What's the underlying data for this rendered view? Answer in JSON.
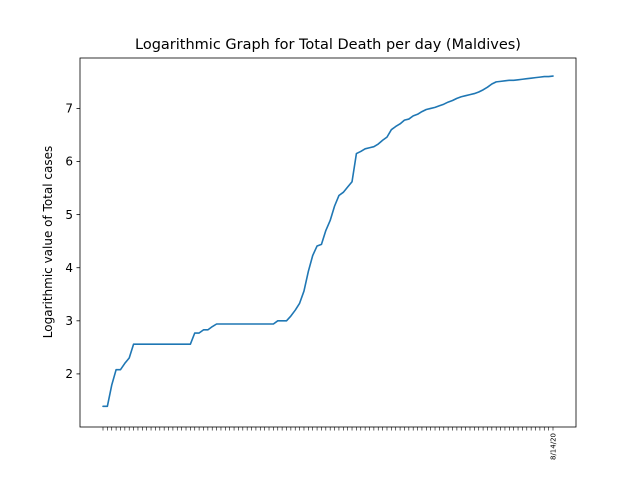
{
  "chart_data": {
    "type": "line",
    "title": "Logarithmic Graph for Total Death per day (Maldives)",
    "xlabel": "",
    "ylabel": "Logarithmic value of Total cases",
    "ylim": [
      1.0,
      7.95
    ],
    "yticks": [
      2,
      3,
      4,
      5,
      6,
      7
    ],
    "grid": false,
    "legend": "none",
    "line_color": "#1f77b4",
    "x_tick_labels": "dates (one label per day, overlapping and unreadable in the original)",
    "last_x_label": "8/14/20",
    "series": [
      {
        "values": [
          1.39,
          1.39,
          1.79,
          2.08,
          2.08,
          2.2,
          2.3,
          2.56,
          2.56,
          2.56,
          2.56,
          2.56,
          2.56,
          2.56,
          2.56,
          2.56,
          2.56,
          2.56,
          2.56,
          2.56,
          2.56,
          2.77,
          2.77,
          2.83,
          2.83,
          2.89,
          2.94,
          2.94,
          2.94,
          2.94,
          2.94,
          2.94,
          2.94,
          2.94,
          2.94,
          2.94,
          2.94,
          2.94,
          2.94,
          2.94,
          3.0,
          3.0,
          3.0,
          3.09,
          3.2,
          3.33,
          3.56,
          3.93,
          4.23,
          4.41,
          4.44,
          4.7,
          4.89,
          5.16,
          5.36,
          5.42,
          5.52,
          5.62,
          6.15,
          6.19,
          6.24,
          6.26,
          6.28,
          6.33,
          6.4,
          6.46,
          6.6,
          6.66,
          6.71,
          6.78,
          6.8,
          6.86,
          6.89,
          6.94,
          6.98,
          7.0,
          7.02,
          7.05,
          7.08,
          7.12,
          7.15,
          7.19,
          7.22,
          7.24,
          7.26,
          7.28,
          7.31,
          7.35,
          7.4,
          7.46,
          7.5,
          7.51,
          7.52,
          7.53,
          7.53,
          7.54,
          7.55,
          7.56,
          7.57,
          7.58,
          7.59,
          7.6,
          7.6,
          7.61
        ]
      }
    ]
  }
}
